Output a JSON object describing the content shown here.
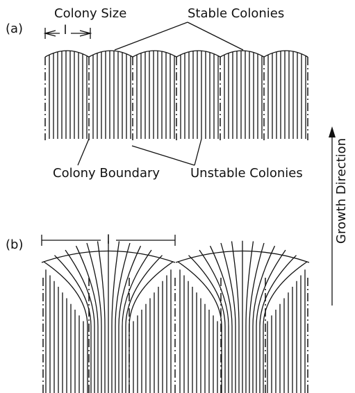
{
  "panel_a": {
    "label": "(a)",
    "colony_size": "Colony Size",
    "size_symbol": "l",
    "stable": "Stable Colonies",
    "boundary": "Colony Boundary",
    "unstable": "Unstable Colonies"
  },
  "panel_b": {
    "label": "(b)",
    "size_symbol": "l"
  },
  "growth_direction": "Growth Direction"
}
